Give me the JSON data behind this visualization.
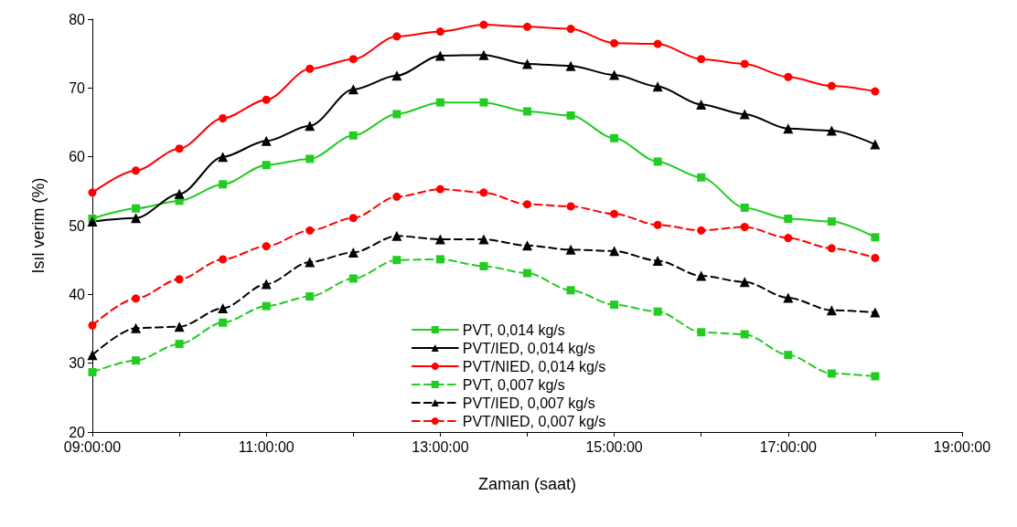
{
  "chart_data": {
    "type": "line",
    "xlabel": "Zaman (saat)",
    "ylabel": "Isıl verim (%)",
    "x": [
      9,
      9.5,
      10,
      10.5,
      11,
      11.5,
      12,
      12.5,
      13,
      13.5,
      14,
      14.5,
      15,
      15.5,
      16,
      16.5,
      17,
      17.5,
      18
    ],
    "xlim": [
      9,
      19
    ],
    "xticks": [
      {
        "value": 9,
        "label": "09:00:00"
      },
      {
        "value": 10,
        "label": null
      },
      {
        "value": 11,
        "label": "11:00:00"
      },
      {
        "value": 12,
        "label": null
      },
      {
        "value": 13,
        "label": "13:00:00"
      },
      {
        "value": 14,
        "label": null
      },
      {
        "value": 15,
        "label": "15:00:00"
      },
      {
        "value": 16,
        "label": null
      },
      {
        "value": 17,
        "label": "17:00:00"
      },
      {
        "value": 18,
        "label": null
      },
      {
        "value": 19,
        "label": "19:00:00"
      }
    ],
    "ylim": [
      20,
      80
    ],
    "yticks": [
      20,
      30,
      40,
      50,
      60,
      70,
      80
    ],
    "grid": false,
    "legend": "bottom",
    "series": [
      {
        "name": "PVT, 0,014 kg/s",
        "color": "#22cc22",
        "marker": "square",
        "line_style": "solid",
        "values": [
          51,
          52.5,
          53.6,
          56,
          58.8,
          59.7,
          63.1,
          66.2,
          67.9,
          67.9,
          66.6,
          66,
          62.7,
          59.3,
          57,
          52.6,
          51,
          50.6,
          48.3
        ]
      },
      {
        "name": "PVT/IED, 0,014 kg/s",
        "color": "#000000",
        "marker": "triangle",
        "line_style": "solid",
        "values": [
          50.6,
          51.1,
          54.6,
          60,
          62.3,
          64.5,
          69.8,
          71.8,
          74.7,
          74.8,
          73.5,
          73.2,
          71.9,
          70.2,
          67.6,
          66.2,
          64.1,
          63.8,
          61.8
        ]
      },
      {
        "name": "PVT/NIED, 0,014 kg/s",
        "color": "#ff0000",
        "marker": "circle",
        "line_style": "solid",
        "values": [
          54.8,
          58,
          61.2,
          65.6,
          68.3,
          72.8,
          74.2,
          77.5,
          78.2,
          79.2,
          78.9,
          78.6,
          76.5,
          76.4,
          74.2,
          73.5,
          71.6,
          70.3,
          69.5
        ]
      },
      {
        "name": "PVT, 0,007 kg/s",
        "color": "#22cc22",
        "marker": "square",
        "line_style": "dashed",
        "values": [
          28.7,
          30.4,
          32.8,
          35.9,
          38.3,
          39.7,
          42.3,
          45,
          45.1,
          44.1,
          43.1,
          40.6,
          38.5,
          37.5,
          34.5,
          34.2,
          31.2,
          28.5,
          28.1
        ]
      },
      {
        "name": "PVT/IED, 0,007 kg/s",
        "color": "#000000",
        "marker": "triangle",
        "line_style": "dashed",
        "values": [
          31.2,
          35.1,
          35.3,
          38,
          41.5,
          44.7,
          46.1,
          48.5,
          48,
          48,
          47.1,
          46.5,
          46.3,
          44.9,
          42.7,
          41.8,
          39.5,
          37.7,
          37.4
        ]
      },
      {
        "name": "PVT/NIED, 0,007 kg/s",
        "color": "#ff0000",
        "marker": "circle",
        "line_style": "dashed",
        "values": [
          35.5,
          39.4,
          42.2,
          45.1,
          47,
          49.3,
          51.1,
          54.2,
          55.3,
          54.8,
          53.1,
          52.8,
          51.7,
          50.1,
          49.3,
          49.8,
          48.2,
          46.7,
          45.3
        ]
      }
    ]
  }
}
